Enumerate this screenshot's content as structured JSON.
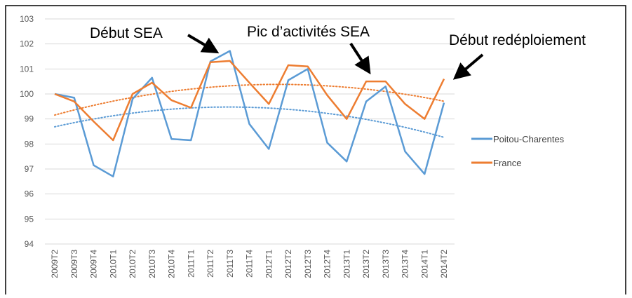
{
  "chart_data": {
    "type": "line",
    "categories": [
      "2009T2",
      "2009T3",
      "2009T4",
      "2010T1",
      "2010T2",
      "2010T3",
      "2010T4",
      "2011T1",
      "2011T2",
      "2011T3",
      "2011T4",
      "2012T1",
      "2012T2",
      "2012T3",
      "2012T4",
      "2013T1",
      "2013T2",
      "2013T3",
      "2013T4",
      "2014T1",
      "2014T2"
    ],
    "series": [
      {
        "name": "Poitou-Charentes",
        "color": "#5b9bd5",
        "values": [
          100,
          99.85,
          97.15,
          96.7,
          99.8,
          100.65,
          98.2,
          98.15,
          101.3,
          101.72,
          98.8,
          97.8,
          100.55,
          101.0,
          98.05,
          97.3,
          99.7,
          100.3,
          97.7,
          96.8,
          99.65
        ]
      },
      {
        "name": "France",
        "color": "#ed7d31",
        "values": [
          100,
          99.7,
          98.9,
          98.15,
          100.0,
          100.45,
          99.75,
          99.45,
          101.27,
          101.32,
          100.45,
          99.6,
          101.15,
          101.1,
          99.95,
          99.0,
          100.5,
          100.5,
          99.6,
          99.0,
          100.6
        ]
      }
    ],
    "ylim": [
      94,
      103
    ],
    "yticks": [
      94,
      95,
      96,
      97,
      98,
      99,
      100,
      101,
      102,
      103
    ],
    "grid": true,
    "legend": "right",
    "trendline": "polynomial",
    "annotations": [
      "Début SEA",
      "Pic d’activités SEA",
      "Début redéploiement"
    ]
  }
}
